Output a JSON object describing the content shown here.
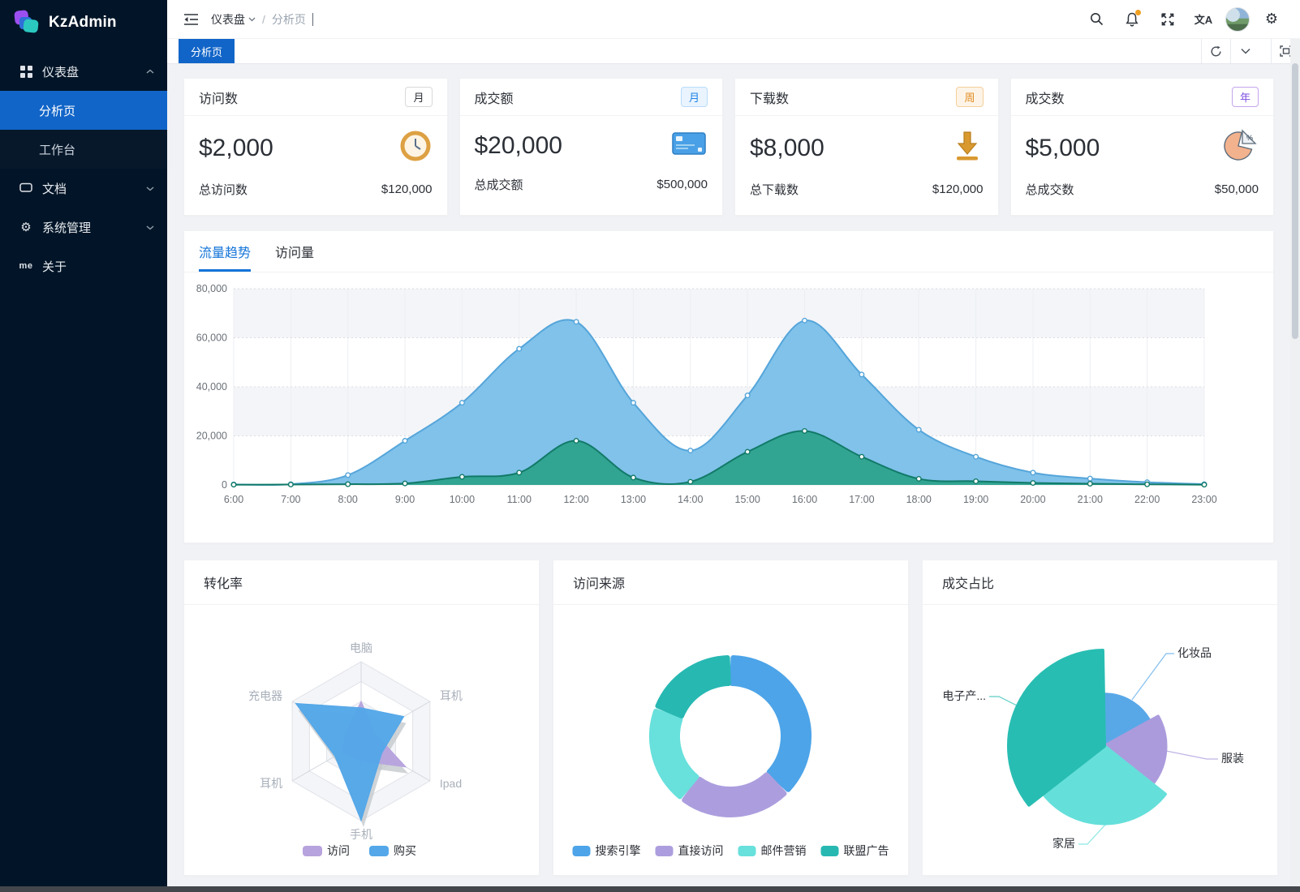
{
  "app": {
    "name": "KzAdmin"
  },
  "sidebar": {
    "logo": "KzAdmin",
    "groups": [
      {
        "label": "仪表盘",
        "icon": "grid-icon",
        "expanded": true,
        "children": [
          {
            "label": "分析页",
            "active": true
          },
          {
            "label": "工作台",
            "active": false
          }
        ]
      },
      {
        "label": "文档",
        "icon": "monitor-icon"
      },
      {
        "label": "系统管理",
        "icon": "gear-icon"
      },
      {
        "label": "关于",
        "icon": "me-icon"
      }
    ]
  },
  "header": {
    "breadcrumb": {
      "root": "仪表盘",
      "separator": "/",
      "current": "分析页"
    },
    "translate_icon_text": "文A"
  },
  "tabbar": {
    "tabs": [
      {
        "label": "分析页",
        "active": true
      }
    ]
  },
  "stat_cards": [
    {
      "title": "访问数",
      "period": "月",
      "value": "$2,000",
      "total_label": "总访问数",
      "total_value": "$120,000",
      "icon": "clock-icon"
    },
    {
      "title": "成交额",
      "period": "月",
      "value": "$20,000",
      "total_label": "总成交额",
      "total_value": "$500,000",
      "icon": "credit-card-icon"
    },
    {
      "title": "下载数",
      "period": "周",
      "value": "$8,000",
      "total_label": "总下载数",
      "total_value": "$120,000",
      "icon": "download-icon"
    },
    {
      "title": "成交数",
      "period": "年",
      "value": "$5,000",
      "total_label": "总成交数",
      "total_value": "$50,000",
      "icon": "pie-icon"
    }
  ],
  "trend_card": {
    "tabs": [
      {
        "label": "流量趋势",
        "active": true
      },
      {
        "label": "访问量",
        "active": false
      }
    ]
  },
  "chart_data": [
    {
      "type": "area",
      "title": "流量趋势",
      "x": [
        "6:00",
        "7:00",
        "8:00",
        "9:00",
        "10:00",
        "11:00",
        "12:00",
        "13:00",
        "14:00",
        "15:00",
        "16:00",
        "17:00",
        "18:00",
        "19:00",
        "20:00",
        "21:00",
        "22:00",
        "23:00"
      ],
      "ylim": [
        0,
        80000
      ],
      "y_ticks": [
        0,
        20000,
        40000,
        60000,
        80000
      ],
      "grid": "horizontal-dotted, vertical-light, alternating split bands",
      "series": [
        {
          "color": "#55a5da",
          "fill": "#7bbfe9",
          "values": [
            200,
            300,
            4000,
            18000,
            33500,
            55500,
            66500,
            33500,
            14000,
            36500,
            67000,
            45000,
            22500,
            11500,
            5000,
            2600,
            1100,
            300
          ]
        },
        {
          "color": "#117a68",
          "fill": "#2fa28e",
          "values": [
            100,
            150,
            300,
            600,
            3300,
            5000,
            18000,
            3000,
            1300,
            13500,
            22000,
            11500,
            2500,
            1500,
            800,
            500,
            250,
            100
          ]
        }
      ]
    },
    {
      "type": "radar",
      "title": "转化率",
      "indicators": [
        "电脑",
        "耳机",
        "Ipad",
        "手机",
        "耳机",
        "充电器"
      ],
      "max": 100,
      "legend_position": "bottom",
      "series": [
        {
          "name": "访问",
          "color": "#b7a3de",
          "values": [
            50,
            20,
            65,
            25,
            28,
            22
          ]
        },
        {
          "name": "购买",
          "color": "#54a7e8",
          "values": [
            42,
            62,
            30,
            100,
            38,
            95
          ]
        }
      ]
    },
    {
      "type": "pie",
      "variant": "donut",
      "title": "访问来源",
      "legend_position": "bottom",
      "items": [
        {
          "label": "搜索引擎",
          "value": 38,
          "color": "#4da4e8"
        },
        {
          "label": "直接访问",
          "value": 23,
          "color": "#ac9ede"
        },
        {
          "label": "邮件营销",
          "value": 20,
          "color": "#68e0dc"
        },
        {
          "label": "联盟广告",
          "value": 19,
          "color": "#27b8b2"
        }
      ]
    },
    {
      "type": "pie",
      "variant": "rose",
      "title": "成交占比",
      "items": [
        {
          "label": "化妆品",
          "value": 16,
          "radius_fraction": 0.54,
          "color": "#58a8e8"
        },
        {
          "label": "服装",
          "value": 18,
          "radius_fraction": 0.64,
          "color": "#ab9bdc"
        },
        {
          "label": "家居",
          "value": 28,
          "radius_fraction": 0.81,
          "color": "#65dfda"
        },
        {
          "label": "电子产...",
          "value": 35,
          "radius_fraction": 1.0,
          "color": "#28bdb2"
        }
      ]
    }
  ]
}
